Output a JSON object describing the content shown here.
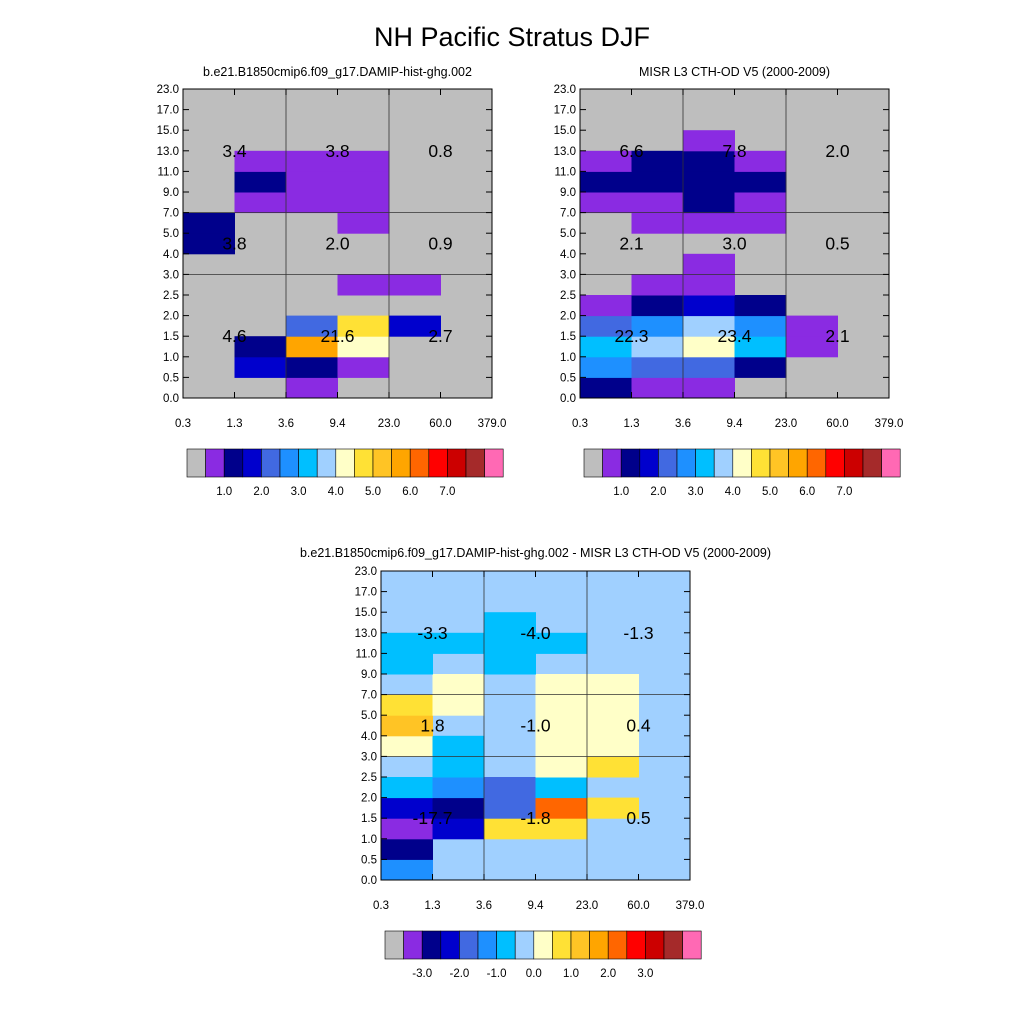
{
  "title": "NH Pacific Stratus DJF",
  "colors": {
    "heatmap_palette": [
      "#bebebe",
      "#8a2be2",
      "#00008b",
      "#0000cd",
      "#4169e1",
      "#1e90ff",
      "#00bfff",
      "#a0d0ff",
      "#ffffc8",
      "#ffe135",
      "#ffc425",
      "#ffa500",
      "#ff6600",
      "#ff0000",
      "#cc0000",
      "#a52a2a",
      "#ff69b4"
    ],
    "box_fill": "#bebebe",
    "diff_box_fill": "#a0d0ff",
    "grid_line": "#333333"
  },
  "chart_data": [
    {
      "type": "heatmap",
      "title": "b.e21.B1850cmip6.f09_g17.DAMIP-hist-ghg.002",
      "x_tick_labels": [
        "0.3",
        "1.3",
        "3.6",
        "9.4",
        "23.0",
        "60.0",
        "379.0"
      ],
      "y_tick_labels": [
        "0.0",
        "0.5",
        "1.0",
        "1.5",
        "2.0",
        "2.5",
        "3.0",
        "4.0",
        "5.0",
        "7.0",
        "9.0",
        "11.0",
        "13.0",
        "15.0",
        "17.0",
        "23.0"
      ],
      "cells": [
        {
          "row": 0,
          "col": 2,
          "level": 1
        },
        {
          "row": 1,
          "col": 1,
          "level": 3
        },
        {
          "row": 1,
          "col": 2,
          "level": 2
        },
        {
          "row": 1,
          "col": 3,
          "level": 1
        },
        {
          "row": 2,
          "col": 1,
          "level": 2
        },
        {
          "row": 2,
          "col": 2,
          "level": 11
        },
        {
          "row": 2,
          "col": 3,
          "level": 8
        },
        {
          "row": 3,
          "col": 2,
          "level": 4
        },
        {
          "row": 3,
          "col": 3,
          "level": 9
        },
        {
          "row": 3,
          "col": 4,
          "level": 3
        },
        {
          "row": 5,
          "col": 3,
          "level": 1
        },
        {
          "row": 5,
          "col": 4,
          "level": 1
        },
        {
          "row": 7,
          "col": 0,
          "level": 2
        },
        {
          "row": 8,
          "col": 0,
          "level": 2
        },
        {
          "row": 8,
          "col": 3,
          "level": 1
        },
        {
          "row": 9,
          "col": 1,
          "level": 1
        },
        {
          "row": 9,
          "col": 2,
          "level": 1
        },
        {
          "row": 9,
          "col": 3,
          "level": 1
        },
        {
          "row": 10,
          "col": 1,
          "level": 2
        },
        {
          "row": 10,
          "col": 2,
          "level": 1
        },
        {
          "row": 10,
          "col": 3,
          "level": 1
        },
        {
          "row": 11,
          "col": 1,
          "level": 1
        },
        {
          "row": 11,
          "col": 2,
          "level": 1
        },
        {
          "row": 11,
          "col": 3,
          "level": 1
        }
      ],
      "box_values": [
        [
          "4.6",
          "21.6",
          "2.7"
        ],
        [
          "3.8",
          "2.0",
          "0.9"
        ],
        [
          "3.4",
          "3.8",
          "0.8"
        ]
      ],
      "colorbar_labels": [
        "1.0",
        "2.0",
        "3.0",
        "4.0",
        "5.0",
        "6.0",
        "7.0"
      ]
    },
    {
      "type": "heatmap",
      "title": "MISR L3 CTH-OD V5 (2000-2009)",
      "x_tick_labels": [
        "0.3",
        "1.3",
        "3.6",
        "9.4",
        "23.0",
        "60.0",
        "379.0"
      ],
      "y_tick_labels": [
        "0.0",
        "0.5",
        "1.0",
        "1.5",
        "2.0",
        "2.5",
        "3.0",
        "4.0",
        "5.0",
        "7.0",
        "9.0",
        "11.0",
        "13.0",
        "15.0",
        "17.0",
        "23.0"
      ],
      "cells": [
        {
          "row": 0,
          "col": 0,
          "level": 2
        },
        {
          "row": 0,
          "col": 1,
          "level": 1
        },
        {
          "row": 0,
          "col": 2,
          "level": 1
        },
        {
          "row": 1,
          "col": 0,
          "level": 5
        },
        {
          "row": 1,
          "col": 1,
          "level": 4
        },
        {
          "row": 1,
          "col": 2,
          "level": 4
        },
        {
          "row": 1,
          "col": 3,
          "level": 2
        },
        {
          "row": 2,
          "col": 0,
          "level": 6
        },
        {
          "row": 2,
          "col": 1,
          "level": 7
        },
        {
          "row": 2,
          "col": 2,
          "level": 8
        },
        {
          "row": 2,
          "col": 3,
          "level": 6
        },
        {
          "row": 2,
          "col": 4,
          "level": 1
        },
        {
          "row": 3,
          "col": 0,
          "level": 4
        },
        {
          "row": 3,
          "col": 1,
          "level": 5
        },
        {
          "row": 3,
          "col": 2,
          "level": 7
        },
        {
          "row": 3,
          "col": 3,
          "level": 5
        },
        {
          "row": 3,
          "col": 4,
          "level": 1
        },
        {
          "row": 4,
          "col": 0,
          "level": 1
        },
        {
          "row": 4,
          "col": 1,
          "level": 2
        },
        {
          "row": 4,
          "col": 2,
          "level": 3
        },
        {
          "row": 4,
          "col": 3,
          "level": 2
        },
        {
          "row": 5,
          "col": 1,
          "level": 1
        },
        {
          "row": 5,
          "col": 2,
          "level": 1
        },
        {
          "row": 6,
          "col": 2,
          "level": 1
        },
        {
          "row": 8,
          "col": 1,
          "level": 1
        },
        {
          "row": 8,
          "col": 2,
          "level": 1
        },
        {
          "row": 8,
          "col": 3,
          "level": 1
        },
        {
          "row": 9,
          "col": 0,
          "level": 1
        },
        {
          "row": 9,
          "col": 1,
          "level": 1
        },
        {
          "row": 9,
          "col": 2,
          "level": 2
        },
        {
          "row": 9,
          "col": 3,
          "level": 1
        },
        {
          "row": 10,
          "col": 0,
          "level": 2
        },
        {
          "row": 10,
          "col": 1,
          "level": 2
        },
        {
          "row": 10,
          "col": 2,
          "level": 2
        },
        {
          "row": 10,
          "col": 3,
          "level": 2
        },
        {
          "row": 11,
          "col": 0,
          "level": 1
        },
        {
          "row": 11,
          "col": 1,
          "level": 2
        },
        {
          "row": 11,
          "col": 2,
          "level": 2
        },
        {
          "row": 11,
          "col": 3,
          "level": 1
        },
        {
          "row": 12,
          "col": 2,
          "level": 1
        }
      ],
      "box_values": [
        [
          "22.3",
          "23.4",
          "2.1"
        ],
        [
          "2.1",
          "3.0",
          "0.5"
        ],
        [
          "6.6",
          "7.8",
          "2.0"
        ]
      ],
      "colorbar_labels": [
        "1.0",
        "2.0",
        "3.0",
        "4.0",
        "5.0",
        "6.0",
        "7.0"
      ]
    },
    {
      "type": "heatmap",
      "title": "b.e21.B1850cmip6.f09_g17.DAMIP-hist-ghg.002 - MISR L3 CTH-OD V5 (2000-2009)",
      "x_tick_labels": [
        "0.3",
        "1.3",
        "3.6",
        "9.4",
        "23.0",
        "60.0",
        "379.0"
      ],
      "y_tick_labels": [
        "0.0",
        "0.5",
        "1.0",
        "1.5",
        "2.0",
        "2.5",
        "3.0",
        "4.0",
        "5.0",
        "7.0",
        "9.0",
        "11.0",
        "13.0",
        "15.0",
        "17.0",
        "23.0"
      ],
      "cells": [
        {
          "row": 0,
          "col": 0,
          "level": 5
        },
        {
          "row": 1,
          "col": 0,
          "level": 2
        },
        {
          "row": 2,
          "col": 0,
          "level": 1
        },
        {
          "row": 2,
          "col": 1,
          "level": 3
        },
        {
          "row": 2,
          "col": 2,
          "level": 9
        },
        {
          "row": 2,
          "col": 3,
          "level": 9
        },
        {
          "row": 3,
          "col": 0,
          "level": 3
        },
        {
          "row": 3,
          "col": 1,
          "level": 2
        },
        {
          "row": 3,
          "col": 2,
          "level": 4
        },
        {
          "row": 3,
          "col": 3,
          "level": 12
        },
        {
          "row": 3,
          "col": 4,
          "level": 9
        },
        {
          "row": 4,
          "col": 0,
          "level": 6
        },
        {
          "row": 4,
          "col": 1,
          "level": 5
        },
        {
          "row": 4,
          "col": 2,
          "level": 4
        },
        {
          "row": 4,
          "col": 3,
          "level": 6
        },
        {
          "row": 5,
          "col": 1,
          "level": 6
        },
        {
          "row": 5,
          "col": 3,
          "level": 8
        },
        {
          "row": 5,
          "col": 4,
          "level": 9
        },
        {
          "row": 6,
          "col": 0,
          "level": 8
        },
        {
          "row": 6,
          "col": 1,
          "level": 6
        },
        {
          "row": 6,
          "col": 3,
          "level": 8
        },
        {
          "row": 6,
          "col": 4,
          "level": 8
        },
        {
          "row": 7,
          "col": 0,
          "level": 10
        },
        {
          "row": 7,
          "col": 3,
          "level": 8
        },
        {
          "row": 7,
          "col": 4,
          "level": 8
        },
        {
          "row": 8,
          "col": 0,
          "level": 9
        },
        {
          "row": 8,
          "col": 1,
          "level": 8
        },
        {
          "row": 8,
          "col": 3,
          "level": 8
        },
        {
          "row": 8,
          "col": 4,
          "level": 8
        },
        {
          "row": 9,
          "col": 1,
          "level": 8
        },
        {
          "row": 9,
          "col": 3,
          "level": 8
        },
        {
          "row": 9,
          "col": 4,
          "level": 8
        },
        {
          "row": 10,
          "col": 0,
          "level": 6
        },
        {
          "row": 10,
          "col": 2,
          "level": 6
        },
        {
          "row": 11,
          "col": 0,
          "level": 6
        },
        {
          "row": 11,
          "col": 1,
          "level": 6
        },
        {
          "row": 11,
          "col": 2,
          "level": 6
        },
        {
          "row": 11,
          "col": 3,
          "level": 6
        },
        {
          "row": 12,
          "col": 2,
          "level": 6
        }
      ],
      "box_values": [
        [
          "-17.7",
          "-1.8",
          "0.5"
        ],
        [
          "1.8",
          "-1.0",
          "0.4"
        ],
        [
          "-3.3",
          "-4.0",
          "-1.3"
        ]
      ],
      "colorbar_labels": [
        "-3.0",
        "-2.0",
        "-1.0",
        "0.0",
        "1.0",
        "2.0",
        "3.0"
      ]
    }
  ]
}
